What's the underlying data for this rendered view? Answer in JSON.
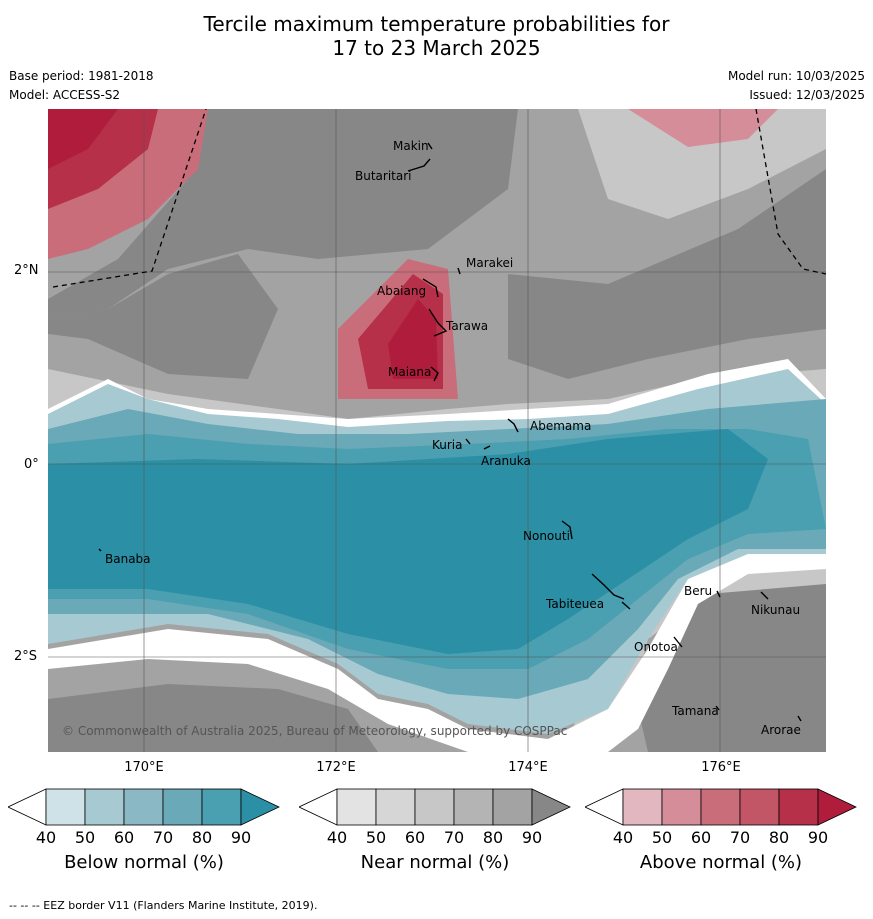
{
  "title": {
    "line1": "Tercile maximum temperature probabilities for",
    "line2": "17 to 23 March 2025"
  },
  "meta": {
    "base_period": "Base period: 1981-2018",
    "model": "Model: ACCESS-S2",
    "model_run": "Model run: 10/03/2025",
    "issued": "Issued: 12/03/2025"
  },
  "map": {
    "lat_labels": [
      "2°N",
      "0°",
      "2°S"
    ],
    "lon_labels": [
      "170°E",
      "172°E",
      "174°E",
      "176°E"
    ],
    "copyright": "© Commonwealth of Australia 2025, Bureau of Meteorology, supported by COSPPac",
    "places": {
      "makin": "Makin",
      "butaritari": "Butaritari",
      "marakei": "Marakei",
      "abaiang": "Abaiang",
      "tarawa": "Tarawa",
      "maiana": "Maiana",
      "abemama": "Abemama",
      "kuria": "Kuria",
      "aranuka": "Aranuka",
      "nonouti": "Nonouti",
      "banaba": "Banaba",
      "tabiteuea": "Tabiteuea",
      "beru": "Beru",
      "nikunau": "Nikunau",
      "onotoa": "Onotoa",
      "tamana": "Tamana",
      "arorae": "Arorae"
    },
    "colors": {
      "below": [
        "#cfe2e7",
        "#a7c9d1",
        "#8bb8c5",
        "#69a9b8",
        "#4a9fb0",
        "#2b90a5"
      ],
      "near": [
        "#e3e3e3",
        "#d6d6d6",
        "#c7c7c7",
        "#b4b4b4",
        "#a3a3a3",
        "#878787"
      ],
      "above": [
        "#e3b7bf",
        "#d48d99",
        "#ca6d7a",
        "#c25566",
        "#b6304a",
        "#b01c3c"
      ]
    }
  },
  "colorbars": {
    "ticks": [
      "40",
      "50",
      "60",
      "70",
      "80",
      "90"
    ],
    "below_title": "Below normal (%)",
    "near_title": "Near normal (%)",
    "above_title": "Above normal (%)"
  },
  "footer": "--  --  -- EEZ border V11 (Flanders Marine Institute, 2019)."
}
